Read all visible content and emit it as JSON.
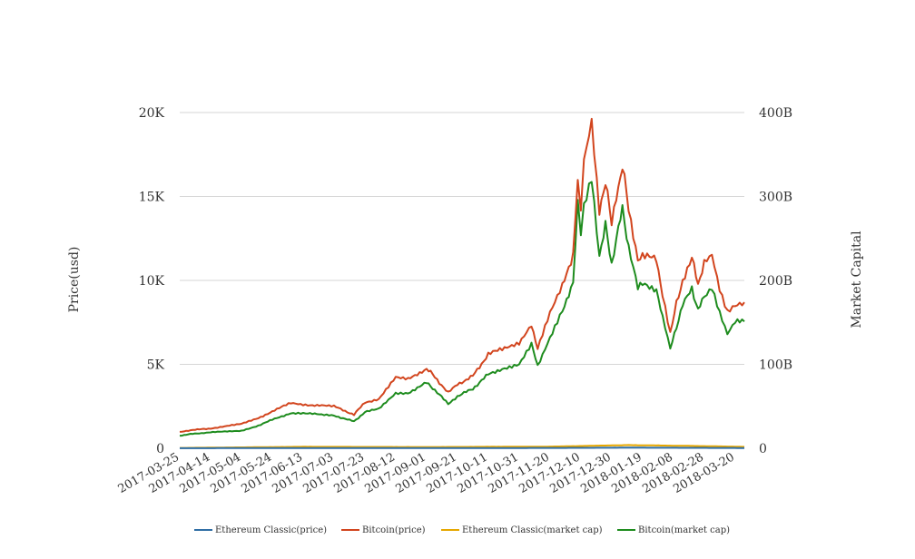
{
  "chart_data": {
    "type": "line",
    "title": "",
    "xlabel": "",
    "ylabel": "Price(usd)",
    "y2label": "Market Capital",
    "ylim": [
      0,
      20000
    ],
    "y2lim": [
      0,
      400000000000
    ],
    "y_ticks": [
      "0",
      "5K",
      "10K",
      "15K",
      "20K"
    ],
    "y2_ticks": [
      "0",
      "100B",
      "200B",
      "300B",
      "400B"
    ],
    "x_ticks": [
      "2017-03-25",
      "2017-04-14",
      "2017-05-04",
      "2017-05-24",
      "2017-06-13",
      "2017-07-03",
      "2017-07-23",
      "2017-08-12",
      "2017-09-01",
      "2017-09-21",
      "2017-10-11",
      "2017-10-31",
      "2017-11-20",
      "2017-12-10",
      "2017-12-30",
      "2018-01-19",
      "2018-02-08",
      "2018-02-28",
      "2018-03-20"
    ],
    "x_range": [
      "2017-03-25",
      "2018-03-26"
    ],
    "grid": true,
    "legend_position": "bottom",
    "series": [
      {
        "name": "Ethereum Classic(price)",
        "axis": "left",
        "color": "#2f6ea5",
        "x": [
          "2017-03-25",
          "2017-06-13",
          "2017-09-01",
          "2017-11-20",
          "2018-01-10",
          "2018-02-28",
          "2018-03-26"
        ],
        "values": [
          4,
          18,
          15,
          20,
          38,
          25,
          17
        ]
      },
      {
        "name": "Bitcoin(price)",
        "axis": "left",
        "color": "#d2451e",
        "x": [
          "2017-03-25",
          "2017-04-01",
          "2017-04-14",
          "2017-05-04",
          "2017-05-15",
          "2017-05-24",
          "2017-06-05",
          "2017-06-13",
          "2017-06-25",
          "2017-07-03",
          "2017-07-16",
          "2017-07-23",
          "2017-08-01",
          "2017-08-12",
          "2017-08-20",
          "2017-09-01",
          "2017-09-05",
          "2017-09-15",
          "2017-09-21",
          "2017-10-01",
          "2017-10-11",
          "2017-10-20",
          "2017-10-31",
          "2017-11-08",
          "2017-11-12",
          "2017-11-20",
          "2017-11-28",
          "2017-12-05",
          "2017-12-08",
          "2017-12-10",
          "2017-12-12",
          "2017-12-17",
          "2017-12-22",
          "2017-12-26",
          "2017-12-30",
          "2018-01-02",
          "2018-01-06",
          "2018-01-10",
          "2018-01-16",
          "2018-01-19",
          "2018-01-28",
          "2018-02-01",
          "2018-02-06",
          "2018-02-10",
          "2018-02-14",
          "2018-02-20",
          "2018-02-24",
          "2018-02-28",
          "2018-03-05",
          "2018-03-10",
          "2018-03-15",
          "2018-03-20",
          "2018-03-26"
        ],
        "values": [
          960,
          1080,
          1180,
          1450,
          1800,
          2200,
          2700,
          2600,
          2550,
          2500,
          2000,
          2750,
          2900,
          4200,
          4100,
          4750,
          4400,
          3300,
          3800,
          4300,
          5600,
          5900,
          6300,
          7400,
          5900,
          8000,
          9600,
          11600,
          16000,
          14300,
          17200,
          19400,
          14000,
          16000,
          13300,
          15000,
          16800,
          14300,
          11300,
          11500,
          11200,
          9200,
          6900,
          8600,
          10000,
          11300,
          9800,
          11000,
          11500,
          9500,
          8200,
          8600,
          8700
        ]
      },
      {
        "name": "Ethereum Classic(market cap)",
        "axis": "right",
        "color": "#e6a700",
        "x": [
          "2017-03-25",
          "2017-06-13",
          "2017-09-01",
          "2017-11-20",
          "2018-01-10",
          "2018-02-28",
          "2018-03-26"
        ],
        "values": [
          400000000,
          1800000000,
          1500000000,
          2000000000,
          3800000000,
          2600000000,
          1700000000
        ]
      },
      {
        "name": "Bitcoin(market cap)",
        "axis": "right",
        "color": "#1e8c1e",
        "x": [
          "2017-03-25",
          "2017-04-01",
          "2017-04-14",
          "2017-05-04",
          "2017-05-15",
          "2017-05-24",
          "2017-06-05",
          "2017-06-13",
          "2017-06-25",
          "2017-07-03",
          "2017-07-16",
          "2017-07-23",
          "2017-08-01",
          "2017-08-12",
          "2017-08-20",
          "2017-09-01",
          "2017-09-05",
          "2017-09-15",
          "2017-09-21",
          "2017-10-01",
          "2017-10-11",
          "2017-10-20",
          "2017-10-31",
          "2017-11-08",
          "2017-11-12",
          "2017-11-20",
          "2017-11-28",
          "2017-12-05",
          "2017-12-08",
          "2017-12-10",
          "2017-12-12",
          "2017-12-17",
          "2017-12-22",
          "2017-12-26",
          "2017-12-30",
          "2018-01-02",
          "2018-01-06",
          "2018-01-10",
          "2018-01-16",
          "2018-01-19",
          "2018-01-28",
          "2018-02-01",
          "2018-02-06",
          "2018-02-10",
          "2018-02-14",
          "2018-02-20",
          "2018-02-24",
          "2018-02-28",
          "2018-03-05",
          "2018-03-10",
          "2018-03-15",
          "2018-03-20",
          "2018-03-26"
        ],
        "values": [
          15000000000,
          17000000000,
          19000000000,
          21000000000,
          27000000000,
          34000000000,
          42000000000,
          42000000000,
          40000000000,
          39000000000,
          32000000000,
          43000000000,
          47000000000,
          66000000000,
          66000000000,
          78000000000,
          72000000000,
          53000000000,
          62000000000,
          71000000000,
          88000000000,
          95000000000,
          100000000000,
          124000000000,
          98000000000,
          132000000000,
          165000000000,
          195000000000,
          290000000000,
          255000000000,
          290000000000,
          325000000000,
          230000000000,
          265000000000,
          220000000000,
          250000000000,
          285000000000,
          240000000000,
          190000000000,
          195000000000,
          190000000000,
          155000000000,
          118000000000,
          145000000000,
          170000000000,
          190000000000,
          165000000000,
          180000000000,
          190000000000,
          160000000000,
          135000000000,
          150000000000,
          151000000000
        ]
      }
    ]
  }
}
